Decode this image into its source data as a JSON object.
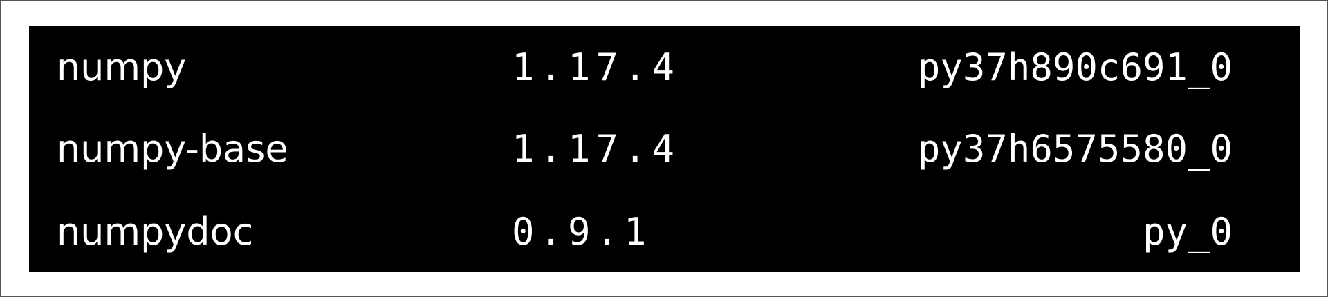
{
  "packages": [
    {
      "name": "numpy",
      "version": "1.17.4",
      "build": "py37h890c691_0"
    },
    {
      "name": "numpy-base",
      "version": "1.17.4",
      "build": "py37h6575580_0"
    },
    {
      "name": "numpydoc",
      "version": "0.9.1",
      "build": "py_0"
    }
  ],
  "colors": {
    "background": "#000000",
    "text": "#ffffff",
    "frame": "#ffffff"
  }
}
